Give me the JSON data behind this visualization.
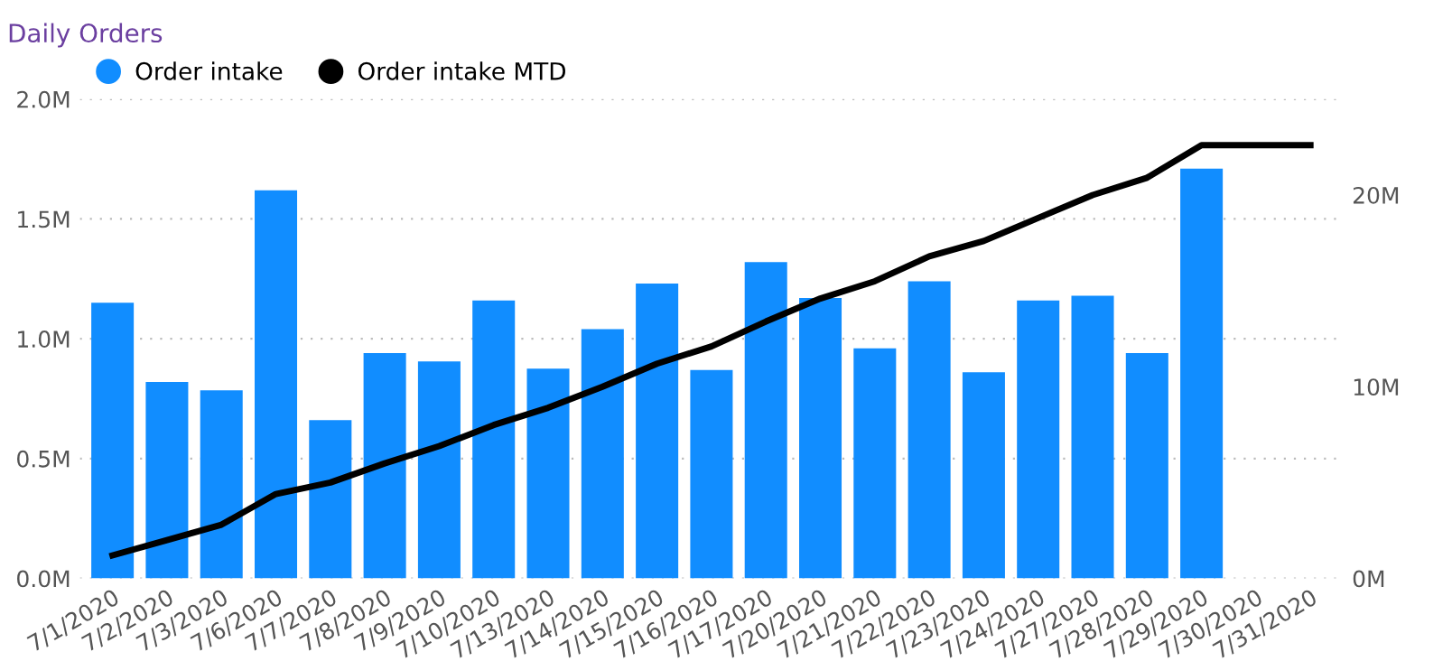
{
  "chart_data": {
    "type": "bar",
    "title": "Daily Orders",
    "categories": [
      "7/1/2020",
      "7/2/2020",
      "7/3/2020",
      "7/6/2020",
      "7/7/2020",
      "7/8/2020",
      "7/9/2020",
      "7/10/2020",
      "7/13/2020",
      "7/14/2020",
      "7/15/2020",
      "7/16/2020",
      "7/17/2020",
      "7/20/2020",
      "7/21/2020",
      "7/22/2020",
      "7/23/2020",
      "7/24/2020",
      "7/27/2020",
      "7/28/2020",
      "7/29/2020",
      "7/30/2020",
      "7/31/2020"
    ],
    "series": [
      {
        "name": "Order intake",
        "color": "#118dff",
        "values": [
          1.15,
          0.82,
          0.785,
          1.62,
          0.66,
          0.94,
          0.905,
          1.16,
          0.875,
          1.04,
          1.23,
          0.87,
          1.32,
          1.17,
          0.96,
          1.24,
          0.86,
          1.16,
          1.18,
          0.94,
          1.71,
          null,
          null
        ]
      },
      {
        "name": "Order intake MTD",
        "type": "line",
        "axis": "y2",
        "color": "#000000",
        "values": [
          1.2,
          2.0,
          2.8,
          4.4,
          5.0,
          6.0,
          6.9,
          8.0,
          8.9,
          10.0,
          11.2,
          12.1,
          13.4,
          14.6,
          15.5,
          16.8,
          17.6,
          18.8,
          20.0,
          20.9,
          22.6,
          22.6,
          22.6
        ]
      }
    ],
    "ylim": [
      0,
      2.0
    ],
    "yticks": [
      {
        "value": 0,
        "label": "0.0M"
      },
      {
        "value": 0.5,
        "label": "0.5M"
      },
      {
        "value": 1.0,
        "label": "1.0M"
      },
      {
        "value": 1.5,
        "label": "1.5M"
      },
      {
        "value": 2.0,
        "label": "2.0M"
      }
    ],
    "y2lim": [
      0,
      25
    ],
    "y2ticks": [
      {
        "value": 0,
        "label": "0M"
      },
      {
        "value": 10,
        "label": "10M"
      },
      {
        "value": 20,
        "label": "20M"
      }
    ],
    "grid": "y",
    "legend": "top left",
    "marker": "none",
    "line_style": "solid"
  }
}
